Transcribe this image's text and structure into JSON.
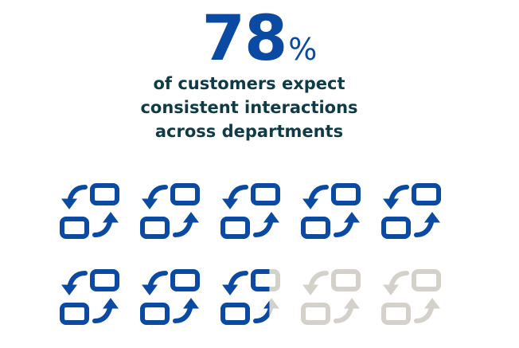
{
  "stat": {
    "value": "78",
    "suffix": "%"
  },
  "description": {
    "lines": [
      "of customers expect",
      "consistent interactions",
      "across departments"
    ]
  },
  "icon_chart": {
    "icon": "exchange-arrows-icon",
    "total_icons": 10,
    "filled_fraction": 0.78,
    "colors": {
      "filled": "#0b4aa2",
      "empty": "#d4d1cb"
    }
  }
}
